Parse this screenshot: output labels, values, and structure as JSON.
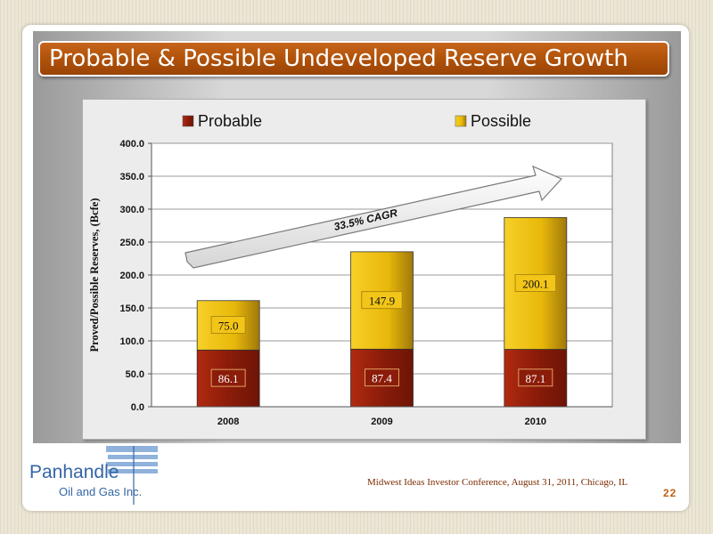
{
  "slide": {
    "title": "Probable & Possible Undeveloped Reserve Growth",
    "footer": "Midwest Ideas Investor Conference, August 31, 2011, Chicago, IL",
    "page_number": "22"
  },
  "logo": {
    "name": "Panhandle",
    "sub": "Oil and Gas Inc."
  },
  "colors": {
    "probable": "#8b1c0a",
    "possible": "#e8b80a",
    "title_bar": "#b0520a"
  },
  "chart_data": {
    "type": "bar",
    "stacked": true,
    "categories": [
      "2008",
      "2009",
      "2010"
    ],
    "series": [
      {
        "name": "Probable",
        "values": [
          86.1,
          87.4,
          87.1
        ],
        "labels": [
          "86.1",
          "87.4",
          "87.1"
        ]
      },
      {
        "name": "Possible",
        "values": [
          75.0,
          147.9,
          200.1
        ],
        "labels": [
          "75.0",
          "147.9",
          "200.1"
        ]
      }
    ],
    "ylabel": "Proved/Possible Reserves, (Bcfe)",
    "ylim": [
      0,
      400
    ],
    "yticks": [
      "0.0",
      "50.0",
      "100.0",
      "150.0",
      "200.0",
      "250.0",
      "300.0",
      "350.0",
      "400.0"
    ],
    "grid": true,
    "legend": "top",
    "annotation": "33.5% CAGR"
  }
}
